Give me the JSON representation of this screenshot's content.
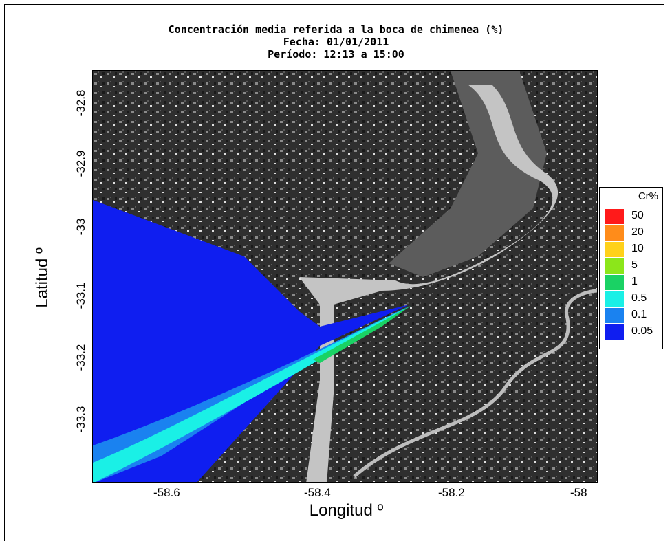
{
  "title": {
    "line1": "Concentración media referida a la boca de chimenea (%)",
    "line2": "Fecha: 01/01/2011",
    "line3": "Período: 12:13 a 15:00"
  },
  "axes": {
    "xlabel": "Longitud º",
    "ylabel": "Latitud º",
    "xticks": [
      "-58.6",
      "-58.4",
      "-58.2",
      "-58"
    ],
    "yticks": [
      "-32.8",
      "-32.9",
      "-33",
      "-33.1",
      "-33.2",
      "-33.3"
    ]
  },
  "legend": {
    "title": "Cr%",
    "items": [
      {
        "label": "50",
        "color": "#ff1a1a"
      },
      {
        "label": "20",
        "color": "#ff8c1a"
      },
      {
        "label": "10",
        "color": "#ffd11a"
      },
      {
        "label": "5",
        "color": "#8ce61a"
      },
      {
        "label": "1",
        "color": "#1ad264"
      },
      {
        "label": "0.5",
        "color": "#1af0e6"
      },
      {
        "label": "0.1",
        "color": "#1a82f0"
      },
      {
        "label": "0.05",
        "color": "#0f1ef0"
      }
    ]
  },
  "colors": {
    "background_land": "#2e2e2e",
    "river": "#c4c4c4",
    "plume_005": "#0f1ef0",
    "plume_01": "#1a82f0",
    "plume_05": "#1af0e6",
    "plume_1": "#1ad264"
  }
}
